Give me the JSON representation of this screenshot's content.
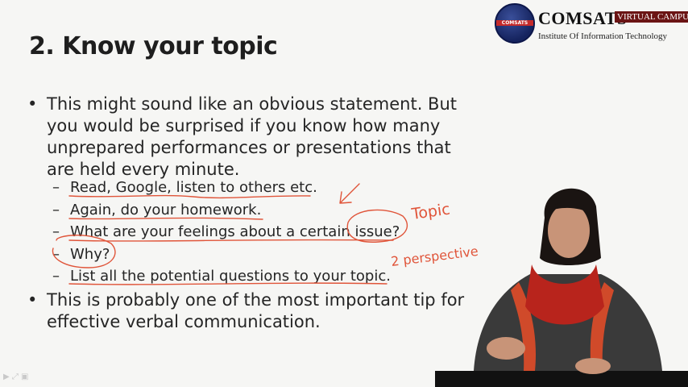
{
  "slide": {
    "title": "2. Know your topic",
    "bullets": [
      {
        "marker": "•",
        "text": "This might sound like an obvious statement. But you would be surprised if you know how many unprepared performances or presentations that are held every minute."
      },
      {
        "marker": "•",
        "text": "This is probably one of the most important tip for effective verbal communication."
      }
    ],
    "sub_bullets": [
      {
        "marker": "–",
        "text": "Read, Google, listen to others etc."
      },
      {
        "marker": "–",
        "text": "Again, do your homework."
      },
      {
        "marker": "–",
        "text": "What are your feelings about a certain issue?"
      },
      {
        "marker": "–",
        "text": "Why?"
      },
      {
        "marker": "–",
        "text": "List all the potential questions to your topic."
      }
    ]
  },
  "logo": {
    "brand": "COMSATS",
    "badge": "VIRTUAL CAMPUS",
    "subtitle": "Institute Of Information Technology",
    "seal_text": "COMSATS"
  },
  "annotations": {
    "word1": "Topic",
    "word2": "2 perspective",
    "color": "#e0553a"
  }
}
